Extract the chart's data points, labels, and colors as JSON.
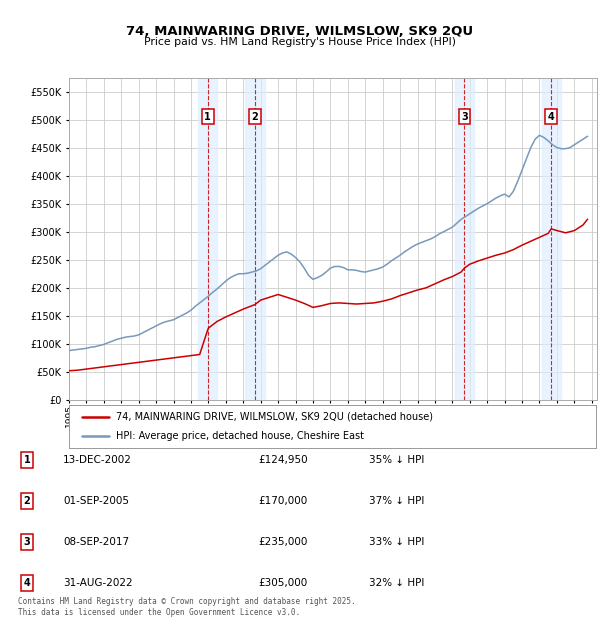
{
  "title": "74, MAINWARING DRIVE, WILMSLOW, SK9 2QU",
  "subtitle": "Price paid vs. HM Land Registry's House Price Index (HPI)",
  "ylim": [
    0,
    575000
  ],
  "yticks": [
    0,
    50000,
    100000,
    150000,
    200000,
    250000,
    300000,
    350000,
    400000,
    450000,
    500000,
    550000
  ],
  "legend_line1": "74, MAINWARING DRIVE, WILMSLOW, SK9 2QU (detached house)",
  "legend_line2": "HPI: Average price, detached house, Cheshire East",
  "line_color_red": "#cc0000",
  "line_color_blue": "#7799bb",
  "sale_markers": [
    {
      "label": "1",
      "date": "13-DEC-2002",
      "price": 124950,
      "pct": "35%",
      "x": 2002.96
    },
    {
      "label": "2",
      "date": "01-SEP-2005",
      "price": 170000,
      "pct": "37%",
      "x": 2005.67
    },
    {
      "label": "3",
      "date": "08-SEP-2017",
      "price": 235000,
      "pct": "33%",
      "x": 2017.69
    },
    {
      "label": "4",
      "date": "31-AUG-2022",
      "price": 305000,
      "pct": "32%",
      "x": 2022.67
    }
  ],
  "footnote": "Contains HM Land Registry data © Crown copyright and database right 2025.\nThis data is licensed under the Open Government Licence v3.0.",
  "background_color": "#ffffff",
  "grid_color": "#cccccc",
  "shading_color": "#ddeeff",
  "hpi_data": {
    "years": [
      1995.0,
      1995.25,
      1995.5,
      1995.75,
      1996.0,
      1996.25,
      1996.5,
      1996.75,
      1997.0,
      1997.25,
      1997.5,
      1997.75,
      1998.0,
      1998.25,
      1998.5,
      1998.75,
      1999.0,
      1999.25,
      1999.5,
      1999.75,
      2000.0,
      2000.25,
      2000.5,
      2000.75,
      2001.0,
      2001.25,
      2001.5,
      2001.75,
      2002.0,
      2002.25,
      2002.5,
      2002.75,
      2003.0,
      2003.25,
      2003.5,
      2003.75,
      2004.0,
      2004.25,
      2004.5,
      2004.75,
      2005.0,
      2005.25,
      2005.5,
      2005.75,
      2006.0,
      2006.25,
      2006.5,
      2006.75,
      2007.0,
      2007.25,
      2007.5,
      2007.75,
      2008.0,
      2008.25,
      2008.5,
      2008.75,
      2009.0,
      2009.25,
      2009.5,
      2009.75,
      2010.0,
      2010.25,
      2010.5,
      2010.75,
      2011.0,
      2011.25,
      2011.5,
      2011.75,
      2012.0,
      2012.25,
      2012.5,
      2012.75,
      2013.0,
      2013.25,
      2013.5,
      2013.75,
      2014.0,
      2014.25,
      2014.5,
      2014.75,
      2015.0,
      2015.25,
      2015.5,
      2015.75,
      2016.0,
      2016.25,
      2016.5,
      2016.75,
      2017.0,
      2017.25,
      2017.5,
      2017.75,
      2018.0,
      2018.25,
      2018.5,
      2018.75,
      2019.0,
      2019.25,
      2019.5,
      2019.75,
      2020.0,
      2020.25,
      2020.5,
      2020.75,
      2021.0,
      2021.25,
      2021.5,
      2021.75,
      2022.0,
      2022.25,
      2022.5,
      2022.75,
      2023.0,
      2023.25,
      2023.5,
      2023.75,
      2024.0,
      2024.25,
      2024.5,
      2024.75
    ],
    "values": [
      88000,
      89000,
      90000,
      91000,
      92000,
      94000,
      95000,
      97000,
      99000,
      102000,
      105000,
      108000,
      110000,
      112000,
      113000,
      114000,
      116000,
      120000,
      124000,
      128000,
      132000,
      136000,
      139000,
      141000,
      143000,
      147000,
      151000,
      155000,
      160000,
      167000,
      173000,
      179000,
      185000,
      192000,
      198000,
      205000,
      212000,
      218000,
      222000,
      225000,
      225000,
      226000,
      228000,
      230000,
      234000,
      240000,
      246000,
      252000,
      258000,
      262000,
      264000,
      260000,
      254000,
      246000,
      235000,
      222000,
      215000,
      218000,
      222000,
      228000,
      235000,
      238000,
      238000,
      236000,
      232000,
      232000,
      231000,
      229000,
      228000,
      230000,
      232000,
      234000,
      237000,
      242000,
      248000,
      253000,
      258000,
      264000,
      269000,
      274000,
      278000,
      281000,
      284000,
      287000,
      291000,
      296000,
      300000,
      304000,
      308000,
      315000,
      322000,
      327000,
      332000,
      337000,
      342000,
      346000,
      350000,
      355000,
      360000,
      364000,
      367000,
      362000,
      372000,
      390000,
      410000,
      430000,
      450000,
      465000,
      472000,
      468000,
      462000,
      455000,
      450000,
      448000,
      448000,
      450000,
      455000,
      460000,
      465000,
      470000
    ]
  },
  "price_data": {
    "years": [
      1995.0,
      1995.5,
      1996.0,
      1996.5,
      1997.0,
      1997.5,
      1998.0,
      1998.5,
      1999.0,
      1999.5,
      2000.0,
      2000.5,
      2001.0,
      2001.5,
      2002.0,
      2002.5,
      2002.96,
      2003.0,
      2003.5,
      2004.0,
      2004.5,
      2005.0,
      2005.5,
      2005.67,
      2006.0,
      2006.5,
      2007.0,
      2007.5,
      2008.0,
      2008.5,
      2009.0,
      2009.5,
      2010.0,
      2010.5,
      2011.0,
      2011.5,
      2012.0,
      2012.5,
      2013.0,
      2013.5,
      2014.0,
      2014.5,
      2015.0,
      2015.5,
      2016.0,
      2016.5,
      2017.0,
      2017.5,
      2017.69,
      2018.0,
      2018.5,
      2019.0,
      2019.5,
      2020.0,
      2020.5,
      2021.0,
      2021.5,
      2022.0,
      2022.5,
      2022.67,
      2023.0,
      2023.5,
      2024.0,
      2024.5,
      2024.75
    ],
    "values": [
      52000,
      53000,
      55000,
      57000,
      59000,
      61000,
      63000,
      65000,
      67000,
      69000,
      71000,
      73000,
      75000,
      77000,
      79000,
      81000,
      124950,
      128000,
      140000,
      148000,
      155000,
      162000,
      168000,
      170000,
      178000,
      183000,
      188000,
      183000,
      178000,
      172000,
      165000,
      168000,
      172000,
      173000,
      172000,
      171000,
      172000,
      173000,
      176000,
      180000,
      186000,
      191000,
      196000,
      200000,
      207000,
      214000,
      220000,
      228000,
      235000,
      242000,
      248000,
      253000,
      258000,
      262000,
      268000,
      276000,
      283000,
      290000,
      297000,
      305000,
      302000,
      298000,
      302000,
      312000,
      322000
    ]
  }
}
